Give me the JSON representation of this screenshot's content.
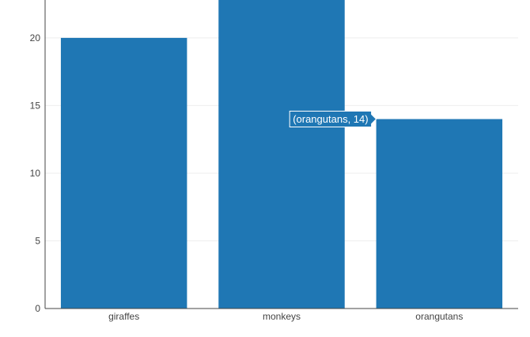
{
  "chart_data": {
    "type": "bar",
    "categories": [
      "giraffes",
      "monkeys",
      "orangutans"
    ],
    "values": [
      20,
      23,
      14
    ],
    "ylim": [
      0,
      22.8
    ],
    "yticks": [
      0,
      5,
      10,
      15,
      20
    ],
    "grid": true,
    "bar_color": "#1f77b4",
    "hover": {
      "category": "orangutans",
      "value": 14,
      "text": "(orangutans, 14)"
    }
  }
}
